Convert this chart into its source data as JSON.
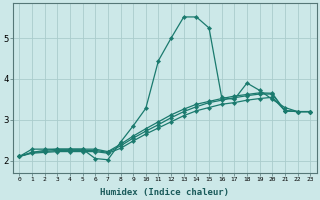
{
  "xlabel": "Humidex (Indice chaleur)",
  "background_color": "#cce8e8",
  "grid_color": "#aacccc",
  "line_color": "#1a7a6e",
  "xlim": [
    -0.5,
    23.5
  ],
  "ylim": [
    1.7,
    5.85
  ],
  "x_ticks": [
    0,
    1,
    2,
    3,
    4,
    5,
    6,
    7,
    8,
    9,
    10,
    11,
    12,
    13,
    14,
    15,
    16,
    17,
    18,
    19,
    20,
    21,
    22,
    23
  ],
  "y_ticks": [
    2,
    3,
    4,
    5
  ],
  "series": [
    {
      "x": [
        0,
        1,
        2,
        3,
        4,
        5,
        6,
        7,
        8,
        9,
        10,
        11,
        12,
        13,
        14,
        15,
        16,
        17,
        18,
        19,
        20,
        21,
        22,
        23
      ],
      "y": [
        2.1,
        2.28,
        2.28,
        2.28,
        2.28,
        2.28,
        2.05,
        2.02,
        2.45,
        2.85,
        3.28,
        4.45,
        5.0,
        5.52,
        5.52,
        5.25,
        3.55,
        3.5,
        3.9,
        3.72,
        3.5,
        3.3,
        3.2,
        3.2
      ]
    },
    {
      "x": [
        0,
        1,
        2,
        3,
        4,
        5,
        6,
        7,
        8,
        9,
        10,
        11,
        12,
        13,
        14,
        15,
        16,
        17,
        18,
        19,
        20,
        21,
        22,
        23
      ],
      "y": [
        2.1,
        2.18,
        2.2,
        2.22,
        2.22,
        2.22,
        2.22,
        2.18,
        2.3,
        2.48,
        2.65,
        2.8,
        2.95,
        3.1,
        3.22,
        3.3,
        3.38,
        3.42,
        3.48,
        3.52,
        3.55,
        3.22,
        3.2,
        3.2
      ]
    },
    {
      "x": [
        0,
        1,
        2,
        3,
        4,
        5,
        6,
        7,
        8,
        9,
        10,
        11,
        12,
        13,
        14,
        15,
        16,
        17,
        18,
        19,
        20,
        21,
        22,
        23
      ],
      "y": [
        2.1,
        2.2,
        2.22,
        2.25,
        2.25,
        2.25,
        2.25,
        2.2,
        2.36,
        2.55,
        2.72,
        2.88,
        3.05,
        3.2,
        3.32,
        3.42,
        3.48,
        3.54,
        3.59,
        3.63,
        3.63,
        3.22,
        3.2,
        3.2
      ]
    },
    {
      "x": [
        0,
        1,
        2,
        3,
        4,
        5,
        6,
        7,
        8,
        9,
        10,
        11,
        12,
        13,
        14,
        15,
        16,
        17,
        18,
        19,
        20,
        21,
        22,
        23
      ],
      "y": [
        2.1,
        2.2,
        2.25,
        2.28,
        2.28,
        2.28,
        2.28,
        2.22,
        2.4,
        2.6,
        2.78,
        2.95,
        3.12,
        3.26,
        3.38,
        3.45,
        3.52,
        3.58,
        3.62,
        3.66,
        3.65,
        3.22,
        3.2,
        3.2
      ]
    }
  ]
}
